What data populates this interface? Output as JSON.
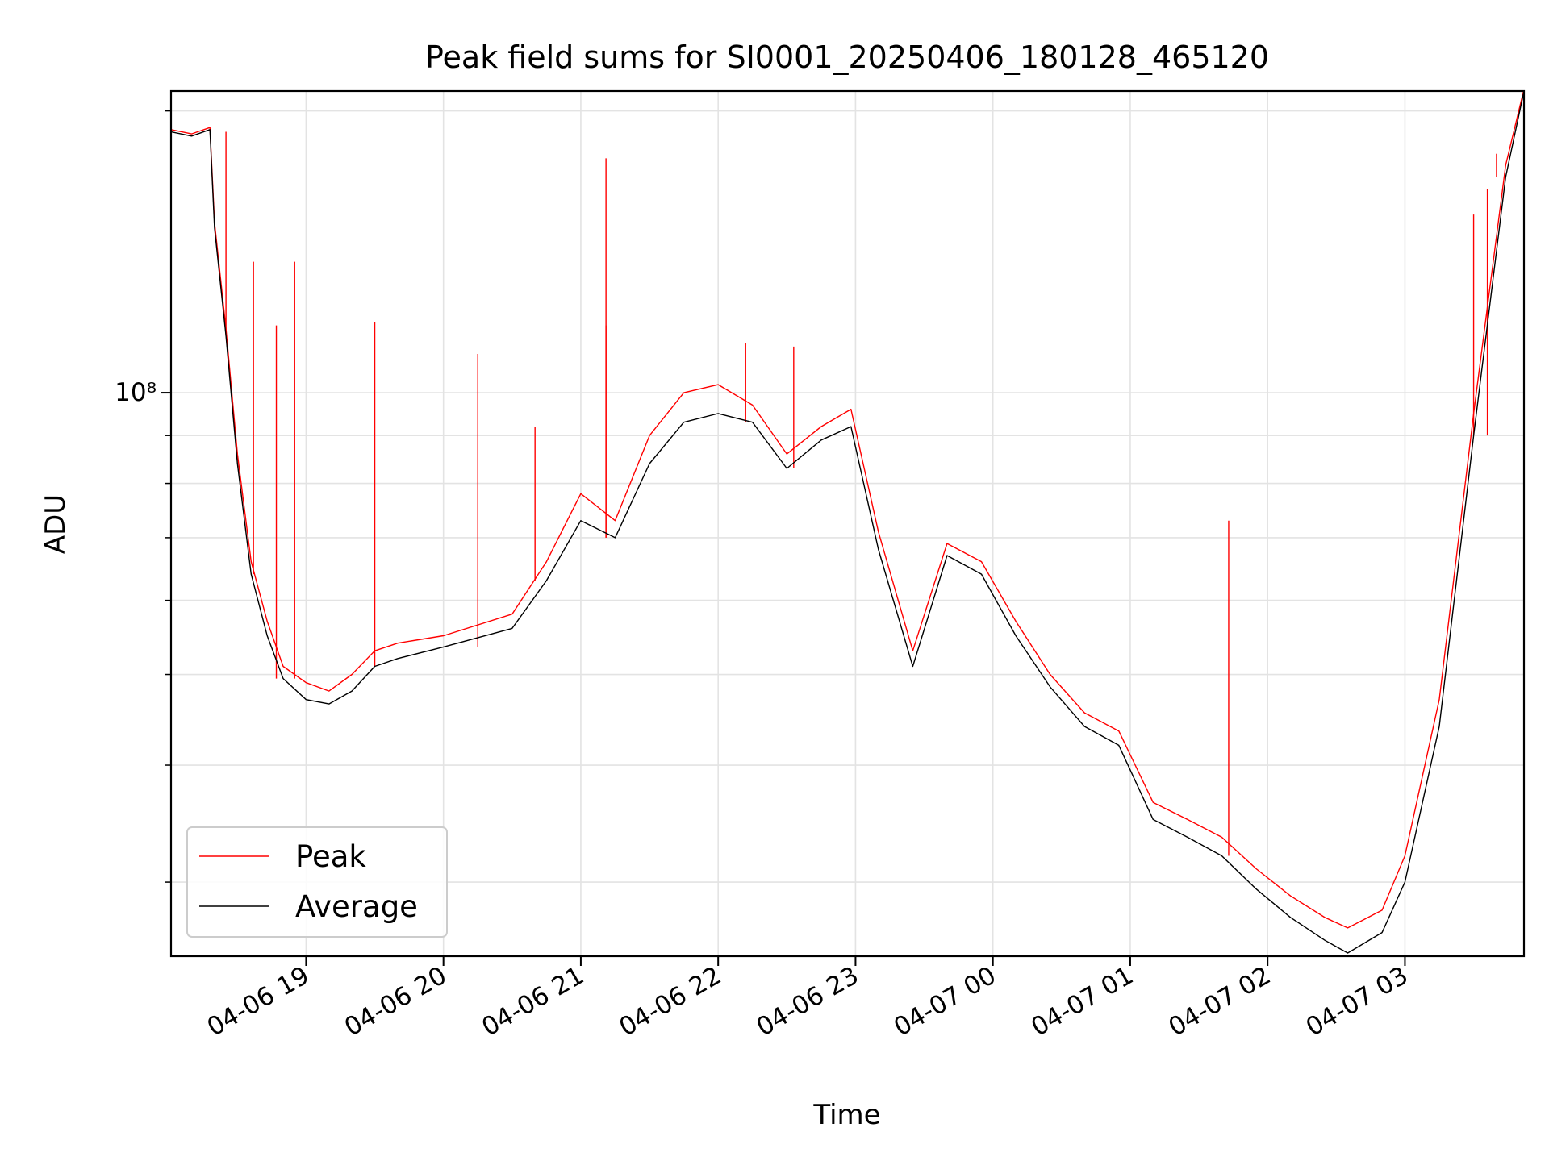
{
  "chart_data": {
    "type": "line",
    "title": "Peak field sums for SI0001_20250406_180128_465120",
    "xlabel": "Time",
    "ylabel": "ADU",
    "yscale": "log",
    "ytick_labels": [
      {
        "value": 100000000,
        "label": "10⁸"
      }
    ],
    "x_tick_labels": [
      "04-06 19",
      "04-06 20",
      "04-06 21",
      "04-06 22",
      "04-06 23",
      "04-07 00",
      "04-07 01",
      "04-07 02",
      "04-07 03"
    ],
    "x_ticks": [
      "2025-04-06 19:00",
      "2025-04-06 20:00",
      "2025-04-06 21:00",
      "2025-04-06 22:00",
      "2025-04-06 23:00",
      "2025-04-07 00:00",
      "2025-04-07 01:00",
      "2025-04-07 02:00",
      "2025-04-07 03:00"
    ],
    "xlim": [
      "2025-04-06 18:01",
      "2025-04-07 03:52"
    ],
    "ylim": [
      25000000,
      210000000
    ],
    "grid": true,
    "legend_position": "lower-left",
    "colors": {
      "peak": "#ff0000",
      "average": "#000000",
      "grid": "#e3e3e3"
    },
    "series": [
      {
        "name": "Average",
        "x": [
          "2025-04-06 18:01",
          "2025-04-06 18:10",
          "2025-04-06 18:18",
          "2025-04-06 18:20",
          "2025-04-06 18:25",
          "2025-04-06 18:30",
          "2025-04-06 18:36",
          "2025-04-06 18:43",
          "2025-04-06 18:50",
          "2025-04-06 19:00",
          "2025-04-06 19:10",
          "2025-04-06 19:20",
          "2025-04-06 19:30",
          "2025-04-06 19:40",
          "2025-04-06 20:00",
          "2025-04-06 20:30",
          "2025-04-06 20:45",
          "2025-04-06 21:00",
          "2025-04-06 21:15",
          "2025-04-06 21:30",
          "2025-04-06 21:45",
          "2025-04-06 22:00",
          "2025-04-06 22:15",
          "2025-04-06 22:30",
          "2025-04-06 22:45",
          "2025-04-06 22:58",
          "2025-04-06 23:10",
          "2025-04-06 23:25",
          "2025-04-06 23:40",
          "2025-04-06 23:55",
          "2025-04-07 00:10",
          "2025-04-07 00:25",
          "2025-04-07 00:40",
          "2025-04-07 00:55",
          "2025-04-07 01:10",
          "2025-04-07 01:25",
          "2025-04-07 01:40",
          "2025-04-07 01:55",
          "2025-04-07 02:10",
          "2025-04-07 02:25",
          "2025-04-07 02:35",
          "2025-04-07 02:50",
          "2025-04-07 03:00",
          "2025-04-07 03:15",
          "2025-04-07 03:30",
          "2025-04-07 03:44",
          "2025-04-07 03:52"
        ],
        "values": [
          190000000,
          188000000,
          191000000,
          150000000,
          115000000,
          84000000,
          64000000,
          55000000,
          49500000,
          47000000,
          46500000,
          48000000,
          51000000,
          52000000,
          53500000,
          56000000,
          63000000,
          73000000,
          70000000,
          84000000,
          93000000,
          95000000,
          93000000,
          83000000,
          89000000,
          92000000,
          68000000,
          51000000,
          67000000,
          64000000,
          55000000,
          48500000,
          44000000,
          42000000,
          35000000,
          33500000,
          32000000,
          29500000,
          27500000,
          26000000,
          25200000,
          26500000,
          30000000,
          44000000,
          90000000,
          170000000,
          210000000
        ]
      },
      {
        "name": "Peak",
        "x": [
          "2025-04-06 18:01",
          "2025-04-06 18:10",
          "2025-04-06 18:18",
          "2025-04-06 18:20",
          "2025-04-06 18:25",
          "2025-04-06 18:30",
          "2025-04-06 18:36",
          "2025-04-06 18:43",
          "2025-04-06 18:50",
          "2025-04-06 19:00",
          "2025-04-06 19:10",
          "2025-04-06 19:20",
          "2025-04-06 19:30",
          "2025-04-06 19:40",
          "2025-04-06 20:00",
          "2025-04-06 20:30",
          "2025-04-06 20:45",
          "2025-04-06 21:00",
          "2025-04-06 21:15",
          "2025-04-06 21:30",
          "2025-04-06 21:45",
          "2025-04-06 22:00",
          "2025-04-06 22:15",
          "2025-04-06 22:30",
          "2025-04-06 22:45",
          "2025-04-06 22:58",
          "2025-04-06 23:10",
          "2025-04-06 23:25",
          "2025-04-06 23:40",
          "2025-04-06 23:55",
          "2025-04-07 00:10",
          "2025-04-07 00:25",
          "2025-04-07 00:40",
          "2025-04-07 00:55",
          "2025-04-07 01:10",
          "2025-04-07 01:25",
          "2025-04-07 01:40",
          "2025-04-07 01:55",
          "2025-04-07 02:10",
          "2025-04-07 02:25",
          "2025-04-07 02:35",
          "2025-04-07 02:50",
          "2025-04-07 03:00",
          "2025-04-07 03:15",
          "2025-04-07 03:30",
          "2025-04-07 03:44",
          "2025-04-07 03:52"
        ],
        "values": [
          191000000,
          189000000,
          192000000,
          152000000,
          117000000,
          86000000,
          66000000,
          57000000,
          51000000,
          49000000,
          48000000,
          50000000,
          53000000,
          54000000,
          55000000,
          58000000,
          66000000,
          78000000,
          73000000,
          90000000,
          100000000,
          102000000,
          97000000,
          86000000,
          92000000,
          96000000,
          71000000,
          53000000,
          69000000,
          66000000,
          57000000,
          50000000,
          45500000,
          43500000,
          36500000,
          35000000,
          33500000,
          31000000,
          29000000,
          27500000,
          26800000,
          28000000,
          32000000,
          47000000,
          95000000,
          175000000,
          211000000
        ],
        "spikes": [
          {
            "x": "2025-04-06 18:25",
            "value": 190000000
          },
          {
            "x": "2025-04-06 18:37",
            "value": 138000000
          },
          {
            "x": "2025-04-06 18:47",
            "value": 118000000
          },
          {
            "x": "2025-04-06 18:55",
            "value": 138000000
          },
          {
            "x": "2025-04-06 19:30",
            "value": 119000000
          },
          {
            "x": "2025-04-06 20:15",
            "value": 110000000
          },
          {
            "x": "2025-04-06 20:40",
            "value": 92000000
          },
          {
            "x": "2025-04-06 21:11",
            "value": 178000000
          },
          {
            "x": "2025-04-06 21:11",
            "value": 118000000
          },
          {
            "x": "2025-04-06 22:12",
            "value": 113000000
          },
          {
            "x": "2025-04-06 22:33",
            "value": 112000000
          },
          {
            "x": "2025-04-07 01:43",
            "value": 73000000
          },
          {
            "x": "2025-04-07 03:30",
            "value": 155000000
          },
          {
            "x": "2025-04-07 03:36",
            "value": 165000000
          },
          {
            "x": "2025-04-07 03:40",
            "value": 180000000
          }
        ]
      }
    ]
  }
}
